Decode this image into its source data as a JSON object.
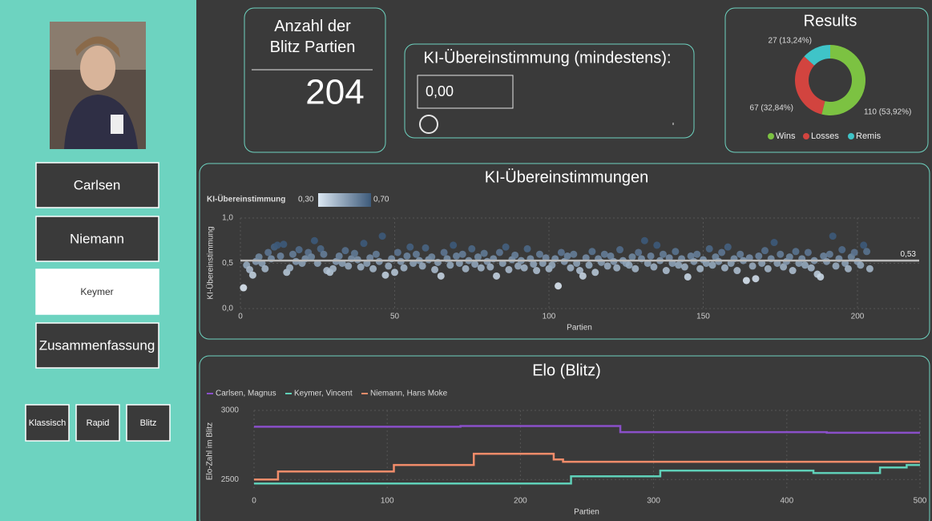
{
  "sidebar": {
    "buttons": [
      "Carlsen",
      "Niemann",
      "Keymer",
      "Zusammenfassung"
    ],
    "selected": 2,
    "modes": [
      "Klassisch",
      "Rapid",
      "Blitz"
    ]
  },
  "card": {
    "title": "Anzahl der Blitz Partien",
    "value": 204
  },
  "slicer": {
    "title": "KI-Übereinstimmung (mindestens):",
    "input": "0,00"
  },
  "chart_data": [
    {
      "type": "donut",
      "title": "Results",
      "categories": [
        "Wins",
        "Losses",
        "Remis"
      ],
      "values": [
        110,
        67,
        27
      ],
      "value_labels": [
        "110 (53,92%)",
        "67 (32,84%)",
        "27 (13,24%)"
      ],
      "colors": [
        "#7cc242",
        "#d2443f",
        "#3fc4c8"
      ]
    },
    {
      "type": "scatter",
      "title": "KI-Übereinstimmungen",
      "x_label": "Partien",
      "y_label": "KI-Übereinstimmung",
      "color_legend": {
        "title": "KI-Übereinstimmung",
        "range": [
          {
            "value": 0.3,
            "label": "0,30"
          },
          {
            "value": 0.7,
            "label": "0,70"
          }
        ],
        "colors": [
          "#dbe7f2",
          "#3d5a7a"
        ]
      },
      "reference_line": {
        "value": 0.53,
        "label": "0,53"
      },
      "xlim": [
        0,
        220
      ],
      "xticks": [
        0,
        50,
        100,
        150,
        200
      ],
      "ylim": [
        0,
        1
      ],
      "yticks": [
        {
          "value": 0,
          "label": "0,0"
        },
        {
          "value": 0.5,
          "label": "0,5"
        },
        {
          "value": 1,
          "label": "1,0"
        }
      ],
      "x": [
        1,
        2,
        3,
        4,
        5,
        6,
        7,
        8,
        9,
        10,
        11,
        12,
        13,
        14,
        15,
        16,
        17,
        18,
        19,
        20,
        21,
        22,
        23,
        24,
        25,
        26,
        27,
        28,
        29,
        30,
        31,
        32,
        33,
        34,
        35,
        36,
        37,
        38,
        39,
        40,
        41,
        42,
        43,
        44,
        45,
        46,
        47,
        48,
        49,
        50,
        51,
        52,
        53,
        54,
        55,
        56,
        57,
        58,
        59,
        60,
        61,
        62,
        63,
        64,
        65,
        66,
        67,
        68,
        69,
        70,
        71,
        72,
        73,
        74,
        75,
        76,
        77,
        78,
        79,
        80,
        81,
        82,
        83,
        84,
        85,
        86,
        87,
        88,
        89,
        90,
        91,
        92,
        93,
        94,
        95,
        96,
        97,
        98,
        99,
        100,
        101,
        102,
        103,
        104,
        105,
        106,
        107,
        108,
        109,
        110,
        111,
        112,
        113,
        114,
        115,
        116,
        117,
        118,
        119,
        120,
        121,
        122,
        123,
        124,
        125,
        126,
        127,
        128,
        129,
        130,
        131,
        132,
        133,
        134,
        135,
        136,
        137,
        138,
        139,
        140,
        141,
        142,
        143,
        144,
        145,
        146,
        147,
        148,
        149,
        150,
        151,
        152,
        153,
        154,
        155,
        156,
        157,
        158,
        159,
        160,
        161,
        162,
        163,
        164,
        165,
        166,
        167,
        168,
        169,
        170,
        171,
        172,
        173,
        174,
        175,
        176,
        177,
        178,
        179,
        180,
        181,
        182,
        183,
        184,
        185,
        186,
        187,
        188,
        189,
        190,
        191,
        192,
        193,
        194,
        195,
        196,
        197,
        198,
        199,
        200,
        201,
        202,
        203,
        204
      ],
      "values": [
        0.23,
        0.48,
        0.43,
        0.37,
        0.52,
        0.57,
        0.5,
        0.44,
        0.62,
        0.55,
        0.68,
        0.7,
        0.58,
        0.71,
        0.4,
        0.45,
        0.6,
        0.52,
        0.65,
        0.5,
        0.55,
        0.62,
        0.57,
        0.75,
        0.5,
        0.66,
        0.6,
        0.42,
        0.4,
        0.44,
        0.52,
        0.58,
        0.5,
        0.64,
        0.47,
        0.55,
        0.61,
        0.54,
        0.46,
        0.72,
        0.5,
        0.56,
        0.44,
        0.6,
        0.52,
        0.8,
        0.37,
        0.47,
        0.55,
        0.4,
        0.62,
        0.52,
        0.45,
        0.58,
        0.68,
        0.5,
        0.6,
        0.53,
        0.47,
        0.67,
        0.54,
        0.57,
        0.43,
        0.51,
        0.36,
        0.62,
        0.55,
        0.48,
        0.7,
        0.58,
        0.5,
        0.6,
        0.44,
        0.53,
        0.66,
        0.49,
        0.57,
        0.45,
        0.61,
        0.52,
        0.46,
        0.55,
        0.36,
        0.62,
        0.5,
        0.68,
        0.43,
        0.54,
        0.59,
        0.47,
        0.53,
        0.45,
        0.66,
        0.55,
        0.49,
        0.42,
        0.6,
        0.5,
        0.56,
        0.44,
        0.48,
        0.55,
        0.25,
        0.62,
        0.52,
        0.58,
        0.45,
        0.6,
        0.5,
        0.42,
        0.36,
        0.56,
        0.48,
        0.63,
        0.4,
        0.55,
        0.51,
        0.6,
        0.47,
        0.58,
        0.52,
        0.45,
        0.65,
        0.53,
        0.5,
        0.48,
        0.57,
        0.44,
        0.62,
        0.55,
        0.75,
        0.5,
        0.58,
        0.46,
        0.7,
        0.53,
        0.6,
        0.42,
        0.56,
        0.5,
        0.63,
        0.48,
        0.55,
        0.46,
        0.35,
        0.58,
        0.52,
        0.6,
        0.44,
        0.54,
        0.5,
        0.66,
        0.48,
        0.57,
        0.52,
        0.62,
        0.45,
        0.68,
        0.5,
        0.55,
        0.42,
        0.6,
        0.53,
        0.31,
        0.56,
        0.47,
        0.33,
        0.58,
        0.5,
        0.64,
        0.44,
        0.55,
        0.73,
        0.5,
        0.6,
        0.46,
        0.52,
        0.57,
        0.42,
        0.63,
        0.5,
        0.55,
        0.48,
        0.62,
        0.45,
        0.53,
        0.38,
        0.35,
        0.58,
        0.52,
        0.6,
        0.8,
        0.47,
        0.55,
        0.65,
        0.5,
        0.44,
        0.57,
        0.62,
        0.52,
        0.48,
        0.7,
        0.63,
        0.44
      ]
    },
    {
      "type": "line",
      "title": "Elo (Blitz)",
      "x_label": "Partien",
      "y_label": "Elo-Zahl im Blitz",
      "xlim": [
        0,
        500
      ],
      "xticks": [
        0,
        100,
        200,
        300,
        400,
        500
      ],
      "ylim": [
        2420,
        3000
      ],
      "yticks": [
        2500,
        3000
      ],
      "grid": true,
      "series": [
        {
          "name": "Carlsen, Magnus",
          "color": "#8a4fc9",
          "x": [
            0,
            155,
            155,
            275,
            275,
            430,
            430,
            500
          ],
          "values": [
            2882,
            2882,
            2887,
            2887,
            2843,
            2843,
            2838,
            2838
          ]
        },
        {
          "name": "Keymer, Vincent",
          "color": "#5fd0b8",
          "x": [
            0,
            238,
            238,
            305,
            305,
            420,
            420,
            470,
            470,
            490,
            490,
            500
          ],
          "values": [
            2471,
            2471,
            2523,
            2523,
            2564,
            2564,
            2547,
            2547,
            2587,
            2587,
            2605,
            2605
          ]
        },
        {
          "name": "Niemann, Hans Moke",
          "color": "#f28c6a",
          "x": [
            0,
            18,
            18,
            105,
            105,
            165,
            165,
            225,
            225,
            232,
            232,
            500
          ],
          "values": [
            2500,
            2500,
            2558,
            2558,
            2605,
            2605,
            2686,
            2686,
            2645,
            2645,
            2628,
            2628
          ]
        }
      ]
    }
  ]
}
